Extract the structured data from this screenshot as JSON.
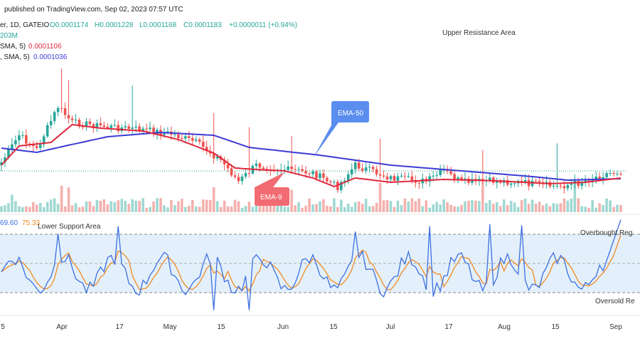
{
  "header": {
    "published": "published on TradingView.com, Sep 02, 2023 07:57 UTC",
    "symbol_line": "er, 1D, GATEIO",
    "ohlc": {
      "o": "O0.0001174",
      "h": "H0.0001228",
      "l": "L0.0001168",
      "c": "C0.0001183",
      "change": "+0.0000011 (+0.94%)"
    },
    "volume_value": "203M",
    "sma_line_1_label": "SMA, 5)",
    "sma_line_1_value": "0.0001106",
    "sma_line_2_label": ", SMA, 5)",
    "sma_line_2_value": "0.0001036"
  },
  "annotations": {
    "upper_resistance": "Upper Resistance Area",
    "lower_support": "Lower Support Area",
    "ema50_callout": "EMA-50",
    "ema9_callout": "EMA-9",
    "overbought": "Overbought Reg",
    "oversold": "Oversold Re"
  },
  "rsi_values": {
    "v1": "69.60",
    "v2": "75.33"
  },
  "x_axis_ticks": [
    "5",
    "Apr",
    "17",
    "May",
    "15",
    "Jun",
    "15",
    "Jul",
    "17",
    "Aug",
    "15",
    "Sep"
  ],
  "colors": {
    "up": "#26a69a",
    "down": "#ef5350",
    "ema50": "#3b3bd6",
    "ema9": "#e0283d",
    "rsi_line": "#3d6fe0",
    "rsi_signal": "#f08a24",
    "callout_blue": "#5b8def",
    "callout_red": "#f26b72",
    "band_fill": "#e3f0fb"
  },
  "chart_data": {
    "type": "line",
    "rsi": {
      "upper_level": 70,
      "middle_level": 50,
      "lower_level": 30,
      "band": [
        30,
        70
      ]
    }
  }
}
